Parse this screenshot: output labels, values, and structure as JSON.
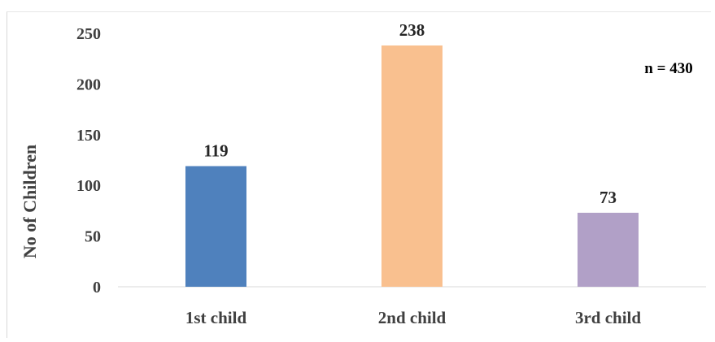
{
  "chart_data": {
    "type": "bar",
    "categories": [
      "1st child",
      "2nd child",
      "3rd child"
    ],
    "values": [
      119,
      238,
      73
    ],
    "data_labels": [
      "119",
      "238",
      "73"
    ],
    "colors": [
      "#4f81bd",
      "#f9c08f",
      "#b1a0c7"
    ],
    "ylabel": "No of Children",
    "xlabel": "",
    "ylim": [
      0,
      250
    ],
    "yticks": [
      "0",
      "50",
      "100",
      "150",
      "200",
      "250"
    ],
    "grid": false,
    "annotation": "n = 430"
  }
}
